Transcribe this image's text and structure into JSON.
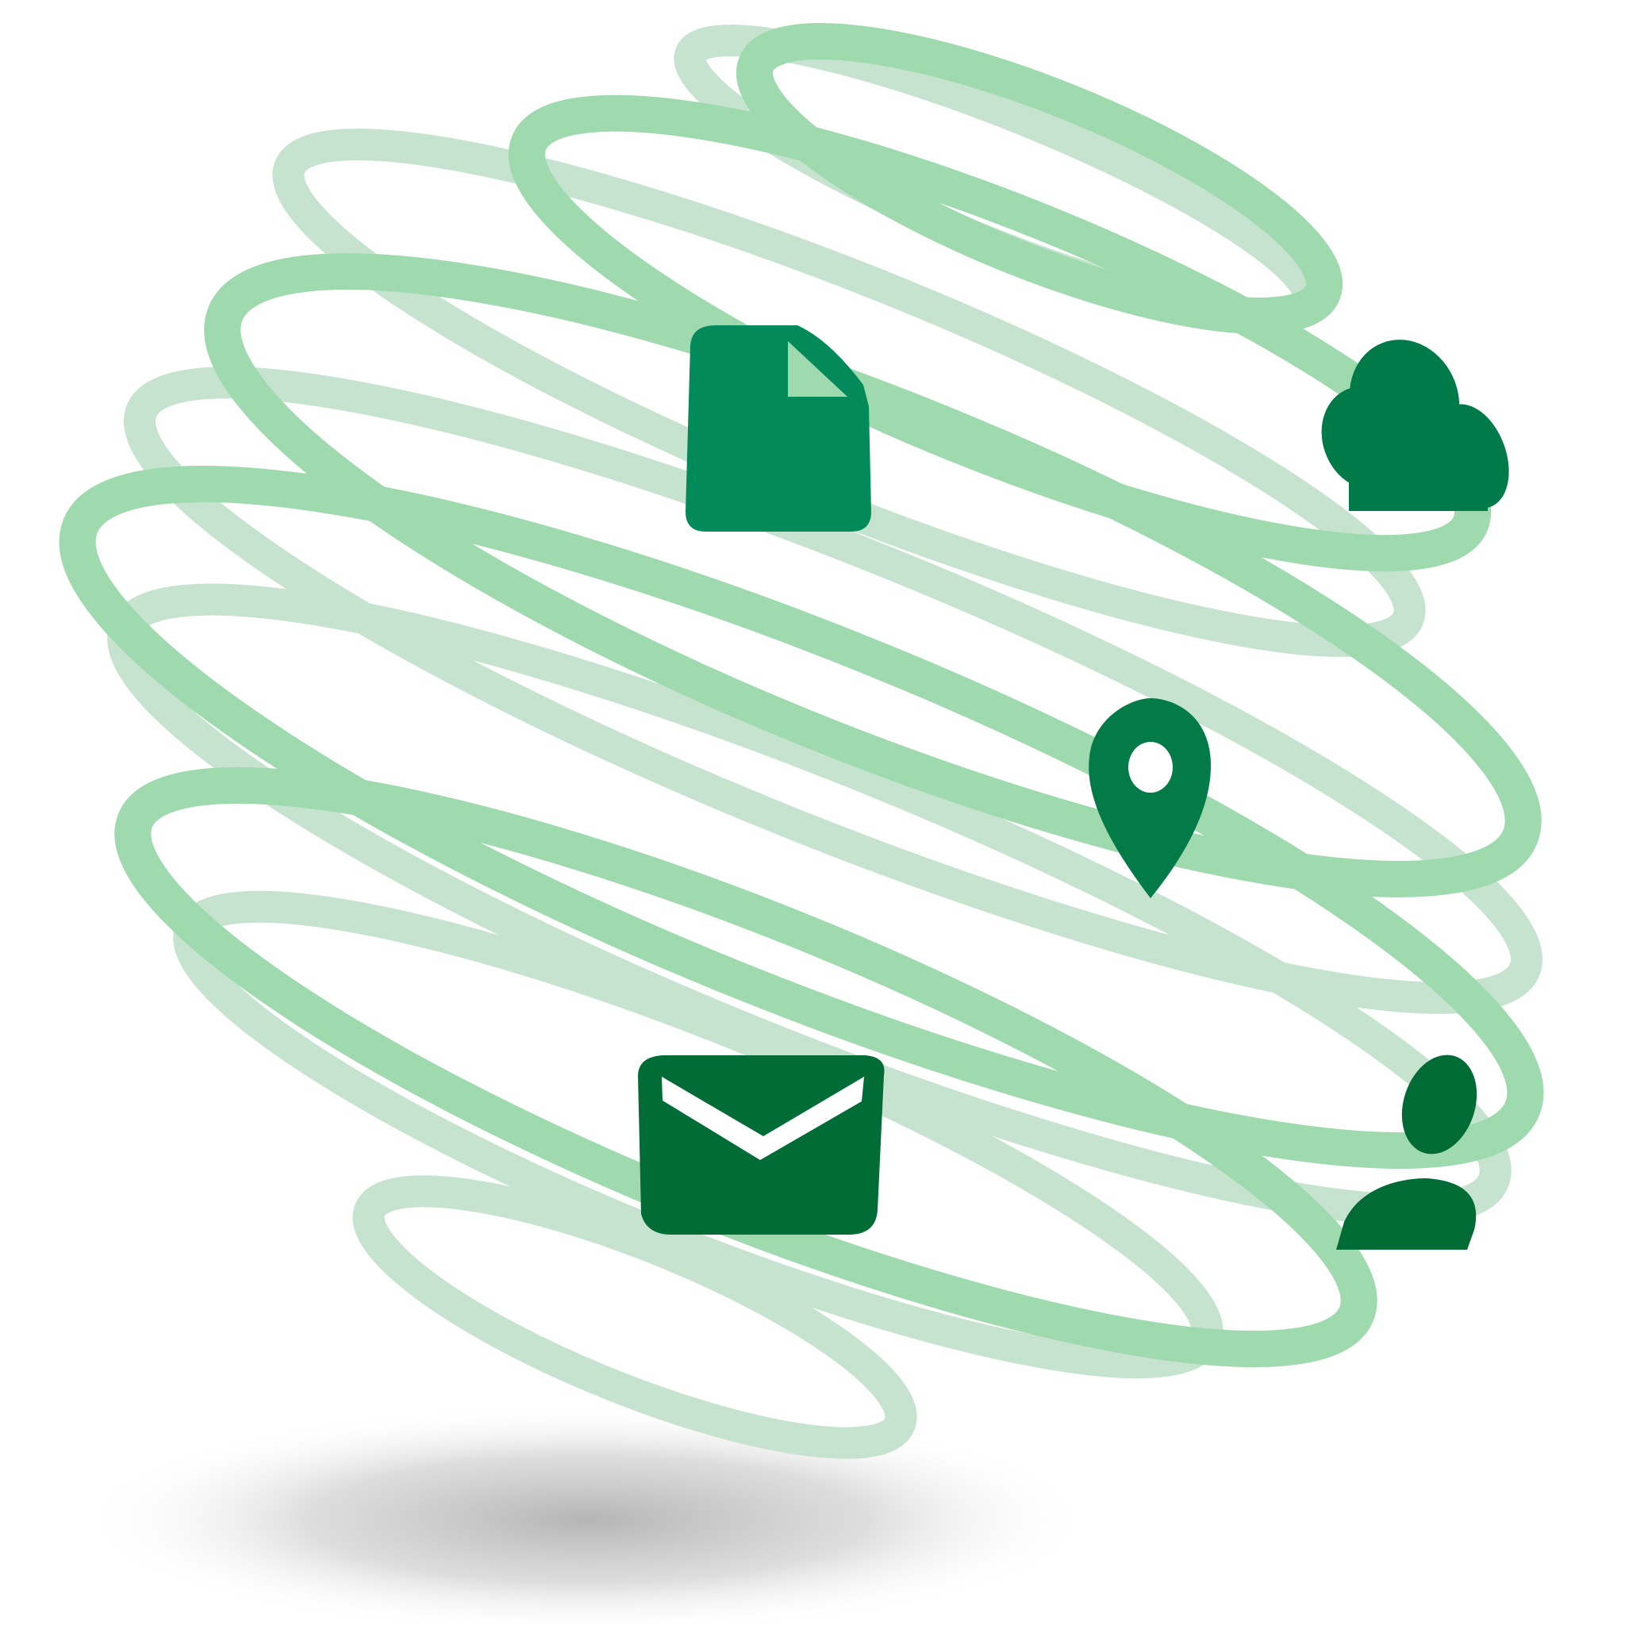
{
  "colors": {
    "background": "#ffffff",
    "ring_front": "#9fdaaf",
    "ring_back": "#c6e3cf",
    "shadow": "#b9b9b9",
    "document_icon": "#038a5b",
    "cloud_icon": "#017a4a",
    "location_icon": "#027b48",
    "mail_icon": "#016c35",
    "user_icon": "#016b35"
  },
  "icons": [
    {
      "name": "document-icon"
    },
    {
      "name": "cloud-icon"
    },
    {
      "name": "location-pin-icon"
    },
    {
      "name": "mail-icon"
    },
    {
      "name": "user-icon"
    }
  ]
}
